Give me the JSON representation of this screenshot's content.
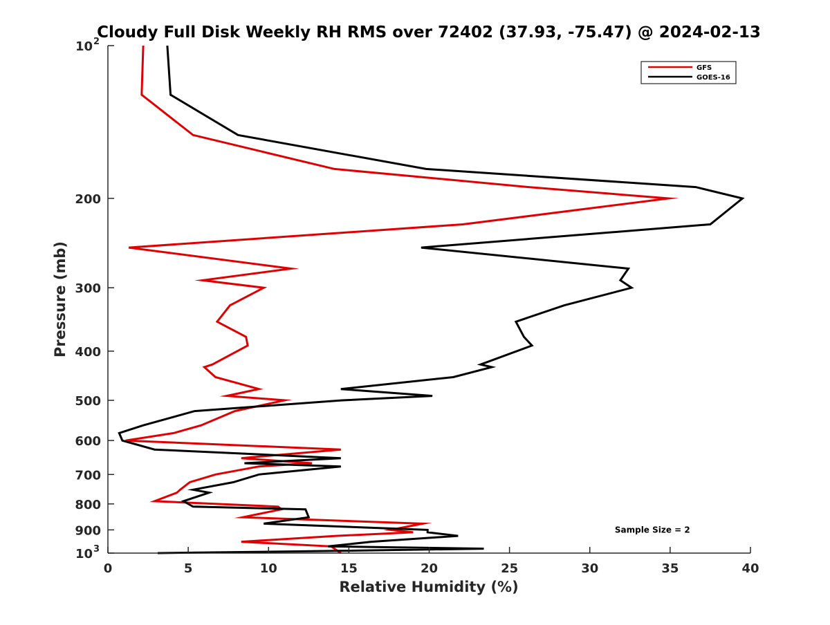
{
  "chart_data": {
    "type": "line",
    "title": "Cloudy Full Disk Weekly RH RMS over 72402 (37.93, -75.47) @ 2024-02-13",
    "xlabel": "Relative Humidity (%)",
    "ylabel": "Pressure (mb)",
    "xlim": [
      0,
      40
    ],
    "ylim": [
      100,
      1000
    ],
    "y_scale": "log",
    "y_reversed": true,
    "grid": false,
    "legend_position": "top-right",
    "x_ticks": [
      {
        "value": 0,
        "label": "0"
      },
      {
        "value": 5,
        "label": "5"
      },
      {
        "value": 10,
        "label": "10"
      },
      {
        "value": 15,
        "label": "15"
      },
      {
        "value": 20,
        "label": "20"
      },
      {
        "value": 25,
        "label": "25"
      },
      {
        "value": 30,
        "label": "30"
      },
      {
        "value": 35,
        "label": "35"
      },
      {
        "value": 40,
        "label": "40"
      }
    ],
    "y_ticks": [
      {
        "value": 100,
        "label": "10",
        "sup": "2"
      },
      {
        "value": 200,
        "label": "200"
      },
      {
        "value": 300,
        "label": "300"
      },
      {
        "value": 400,
        "label": "400"
      },
      {
        "value": 500,
        "label": "500"
      },
      {
        "value": 600,
        "label": "600"
      },
      {
        "value": 700,
        "label": "700"
      },
      {
        "value": 800,
        "label": "800"
      },
      {
        "value": 900,
        "label": "900"
      },
      {
        "value": 1000,
        "label": "10",
        "sup": "3"
      }
    ],
    "series": [
      {
        "name": "GFS",
        "color": "#e00000",
        "points": [
          [
            2.2,
            100
          ],
          [
            2.1,
            125
          ],
          [
            5.3,
            150
          ],
          [
            14.1,
            175
          ],
          [
            26.2,
            190
          ],
          [
            34.9,
            200
          ],
          [
            22.1,
            225
          ],
          [
            1.3,
            250
          ],
          [
            11.4,
            275
          ],
          [
            5.9,
            290
          ],
          [
            9.7,
            300
          ],
          [
            7.6,
            325
          ],
          [
            6.8,
            350
          ],
          [
            8.6,
            375
          ],
          [
            8.7,
            390
          ],
          [
            6.5,
            425
          ],
          [
            6.0,
            430
          ],
          [
            6.7,
            450
          ],
          [
            9.4,
            475
          ],
          [
            7.4,
            490
          ],
          [
            11.0,
            500
          ],
          [
            7.9,
            525
          ],
          [
            5.8,
            560
          ],
          [
            4.1,
            580
          ],
          [
            1.1,
            600
          ],
          [
            14.5,
            625
          ],
          [
            8.3,
            650
          ],
          [
            12.7,
            665
          ],
          [
            9.4,
            675
          ],
          [
            6.7,
            700
          ],
          [
            5.1,
            725
          ],
          [
            4.5,
            750
          ],
          [
            4.3,
            760
          ],
          [
            2.9,
            790
          ],
          [
            10.6,
            810
          ],
          [
            10.8,
            820
          ],
          [
            8.4,
            850
          ],
          [
            19.6,
            875
          ],
          [
            17.6,
            900
          ],
          [
            19.0,
            910
          ],
          [
            14.2,
            925
          ],
          [
            8.3,
            950
          ],
          [
            13.9,
            970
          ],
          [
            14.5,
            1000
          ]
        ]
      },
      {
        "name": "GOES-16",
        "color": "#000000",
        "points": [
          [
            3.7,
            100
          ],
          [
            3.9,
            125
          ],
          [
            8.1,
            150
          ],
          [
            19.8,
            175
          ],
          [
            36.6,
            190
          ],
          [
            39.5,
            200
          ],
          [
            37.5,
            225
          ],
          [
            19.5,
            250
          ],
          [
            32.4,
            275
          ],
          [
            31.9,
            290
          ],
          [
            32.6,
            300
          ],
          [
            28.4,
            325
          ],
          [
            25.4,
            350
          ],
          [
            25.9,
            375
          ],
          [
            26.4,
            390
          ],
          [
            23.2,
            425
          ],
          [
            23.9,
            430
          ],
          [
            21.5,
            450
          ],
          [
            14.5,
            475
          ],
          [
            20.2,
            490
          ],
          [
            14.6,
            500
          ],
          [
            5.4,
            525
          ],
          [
            2.2,
            560
          ],
          [
            0.7,
            580
          ],
          [
            0.9,
            600
          ],
          [
            2.9,
            625
          ],
          [
            14.5,
            650
          ],
          [
            8.5,
            665
          ],
          [
            14.5,
            675
          ],
          [
            9.4,
            700
          ],
          [
            7.8,
            725
          ],
          [
            5.3,
            750
          ],
          [
            6.3,
            760
          ],
          [
            4.7,
            790
          ],
          [
            5.3,
            810
          ],
          [
            12.3,
            820
          ],
          [
            12.5,
            850
          ],
          [
            9.7,
            875
          ],
          [
            19.9,
            900
          ],
          [
            19.9,
            910
          ],
          [
            21.8,
            925
          ],
          [
            16.4,
            950
          ],
          [
            13.7,
            970
          ],
          [
            23.4,
            980
          ],
          [
            14.3,
            990
          ],
          [
            3.1,
            1000
          ]
        ]
      }
    ],
    "annotations": [
      {
        "text": "Sample Size = 2",
        "x": 33.9,
        "p": 900
      }
    ]
  }
}
